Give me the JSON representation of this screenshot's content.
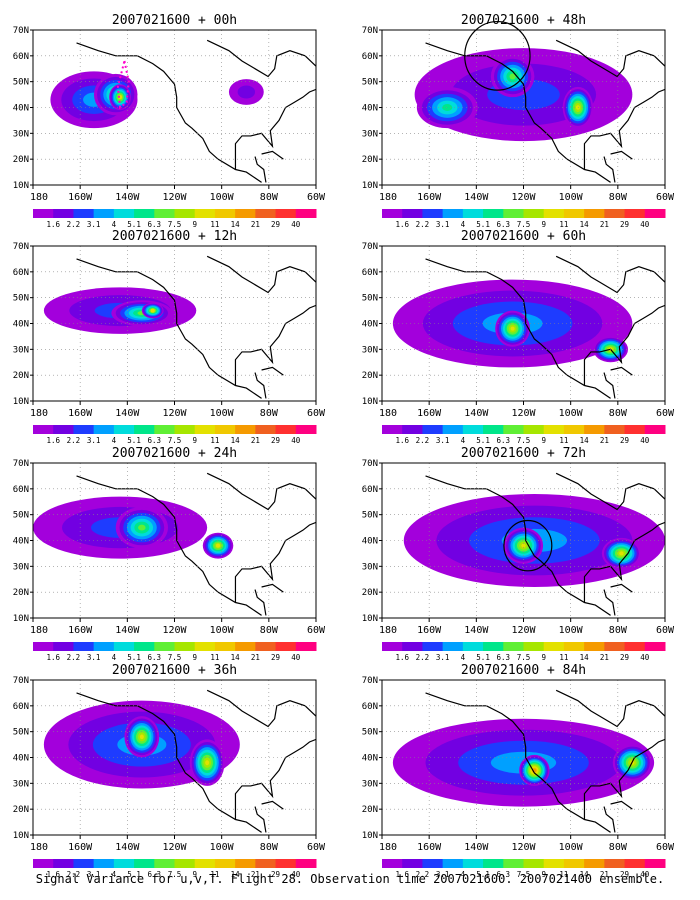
{
  "figure": {
    "caption": "Signal Variance for u,v,T. Flight 28. Observation time 2007021600. 2007021400 ensemble."
  },
  "chart_data": {
    "type": "heatmap",
    "panels": [
      {
        "title": "2007021600 + 00h",
        "blobs": [
          {
            "lon": -162,
            "lat": 43,
            "rx": 20,
            "ry": 11,
            "level": 3
          },
          {
            "lon": -152,
            "lat": 45,
            "rx": 10,
            "ry": 8,
            "level": 6
          },
          {
            "lon": -150,
            "lat": 44,
            "rx": 5,
            "ry": 5,
            "level": 8
          },
          {
            "lon": -92,
            "lat": 46,
            "rx": 8,
            "ry": 5,
            "level": 1
          }
        ],
        "dotted_line": [
          [
            -148,
            58
          ],
          [
            -146,
            50
          ],
          [
            -147,
            42
          ],
          [
            -150,
            40
          ],
          [
            -151,
            48
          ],
          [
            -148,
            58
          ]
        ]
      },
      {
        "title": "2007021600 + 48h",
        "blobs": [
          {
            "lon": -125,
            "lat": 45,
            "rx": 50,
            "ry": 18,
            "level": 2
          },
          {
            "lon": -130,
            "lat": 52,
            "rx": 10,
            "ry": 8,
            "level": 6
          },
          {
            "lon": -100,
            "lat": 40,
            "rx": 7,
            "ry": 8,
            "level": 8
          },
          {
            "lon": -160,
            "lat": 40,
            "rx": 14,
            "ry": 8,
            "level": 5
          }
        ],
        "circle": {
          "lon": -137,
          "lat": 60,
          "r": 15
        }
      },
      {
        "title": "2007021600 + 12h",
        "blobs": [
          {
            "lon": -150,
            "lat": 45,
            "rx": 35,
            "ry": 9,
            "level": 2
          },
          {
            "lon": -140,
            "lat": 44,
            "rx": 14,
            "ry": 5,
            "level": 6
          },
          {
            "lon": -135,
            "lat": 45,
            "rx": 5,
            "ry": 3,
            "level": 8
          }
        ]
      },
      {
        "title": "2007021600 + 60h",
        "blobs": [
          {
            "lon": -130,
            "lat": 40,
            "rx": 55,
            "ry": 17,
            "level": 3
          },
          {
            "lon": -130,
            "lat": 38,
            "rx": 8,
            "ry": 7,
            "level": 8
          },
          {
            "lon": -85,
            "lat": 30,
            "rx": 8,
            "ry": 5,
            "level": 8
          }
        ]
      },
      {
        "title": "2007021600 + 24h",
        "blobs": [
          {
            "lon": -150,
            "lat": 45,
            "rx": 40,
            "ry": 12,
            "level": 2
          },
          {
            "lon": -140,
            "lat": 45,
            "rx": 12,
            "ry": 8,
            "level": 6
          },
          {
            "lon": -105,
            "lat": 38,
            "rx": 7,
            "ry": 5,
            "level": 8
          }
        ]
      },
      {
        "title": "2007021600 + 72h",
        "blobs": [
          {
            "lon": -120,
            "lat": 40,
            "rx": 60,
            "ry": 18,
            "level": 3
          },
          {
            "lon": -125,
            "lat": 38,
            "rx": 9,
            "ry": 7,
            "level": 8
          },
          {
            "lon": -80,
            "lat": 35,
            "rx": 9,
            "ry": 6,
            "level": 8
          }
        ],
        "circle": {
          "lon": -123,
          "lat": 38,
          "r": 11
        }
      },
      {
        "title": "2007021600 + 36h",
        "blobs": [
          {
            "lon": -140,
            "lat": 45,
            "rx": 45,
            "ry": 17,
            "level": 3
          },
          {
            "lon": -140,
            "lat": 48,
            "rx": 8,
            "ry": 8,
            "level": 8
          },
          {
            "lon": -110,
            "lat": 38,
            "rx": 8,
            "ry": 9,
            "level": 8
          }
        ]
      },
      {
        "title": "2007021600 + 84h",
        "blobs": [
          {
            "lon": -125,
            "lat": 38,
            "rx": 60,
            "ry": 17,
            "level": 3
          },
          {
            "lon": -120,
            "lat": 35,
            "rx": 7,
            "ry": 6,
            "level": 10
          },
          {
            "lon": -75,
            "lat": 38,
            "rx": 9,
            "ry": 7,
            "level": 8
          }
        ]
      }
    ],
    "x_ticks": [
      "180",
      "160W",
      "140W",
      "120W",
      "100W",
      "80W",
      "60W"
    ],
    "y_ticks": [
      "10N",
      "20N",
      "30N",
      "40N",
      "50N",
      "60N",
      "70N"
    ],
    "xlim": [
      -190,
      -60
    ],
    "ylim": [
      10,
      70
    ],
    "grid": "dotted",
    "colorbar_labels": [
      "1.6",
      "2.2",
      "3.1",
      "4",
      "5.1",
      "6.3",
      "7.5",
      "9",
      "11",
      "14",
      "21",
      "29",
      "40"
    ],
    "colorbar_colors": [
      "#a300dc",
      "#7200e2",
      "#1e3cff",
      "#00a0ff",
      "#00dcdc",
      "#00e68a",
      "#60ef35",
      "#a6e600",
      "#e3e100",
      "#f0c800",
      "#f59a00",
      "#f06020",
      "#ff3030",
      "#ff0080"
    ]
  }
}
